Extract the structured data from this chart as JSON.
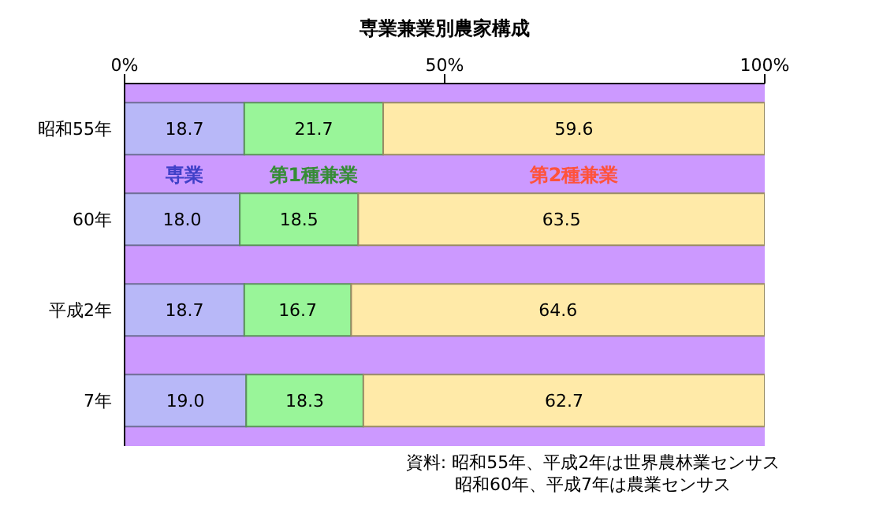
{
  "chart_data": {
    "type": "bar",
    "orientation": "horizontal",
    "stacked": true,
    "title": "専業兼業別農家構成",
    "categories": [
      "昭和55年",
      "60年",
      "平成2年",
      "7年"
    ],
    "series": [
      {
        "name": "専業",
        "color": "#b8b8f8",
        "values": [
          18.7,
          18.0,
          18.7,
          19.0
        ],
        "value_labels": [
          "18.7",
          "18.0",
          "18.7",
          "19.0"
        ]
      },
      {
        "name": "第1種兼業",
        "color": "#99f599",
        "values": [
          21.7,
          18.5,
          16.7,
          18.3
        ],
        "value_labels": [
          "21.7",
          "18.5",
          "16.7",
          "18.3"
        ]
      },
      {
        "name": "第2種兼業",
        "color": "#ffeaa8",
        "values": [
          59.6,
          63.5,
          64.6,
          62.7
        ],
        "value_labels": [
          "59.6",
          "63.5",
          "64.6",
          "62.7"
        ]
      }
    ],
    "xlim": [
      0,
      100
    ],
    "xticks": [
      {
        "value": 0,
        "label": "0%"
      },
      {
        "value": 50,
        "label": "50%"
      },
      {
        "value": 100,
        "label": "100%"
      }
    ],
    "grid": false,
    "legend": false,
    "annotations": [
      "資料: 昭和55年、平成2年は世界農林業センサス",
      "昭和60年、平成7年は農業センサス"
    ]
  }
}
